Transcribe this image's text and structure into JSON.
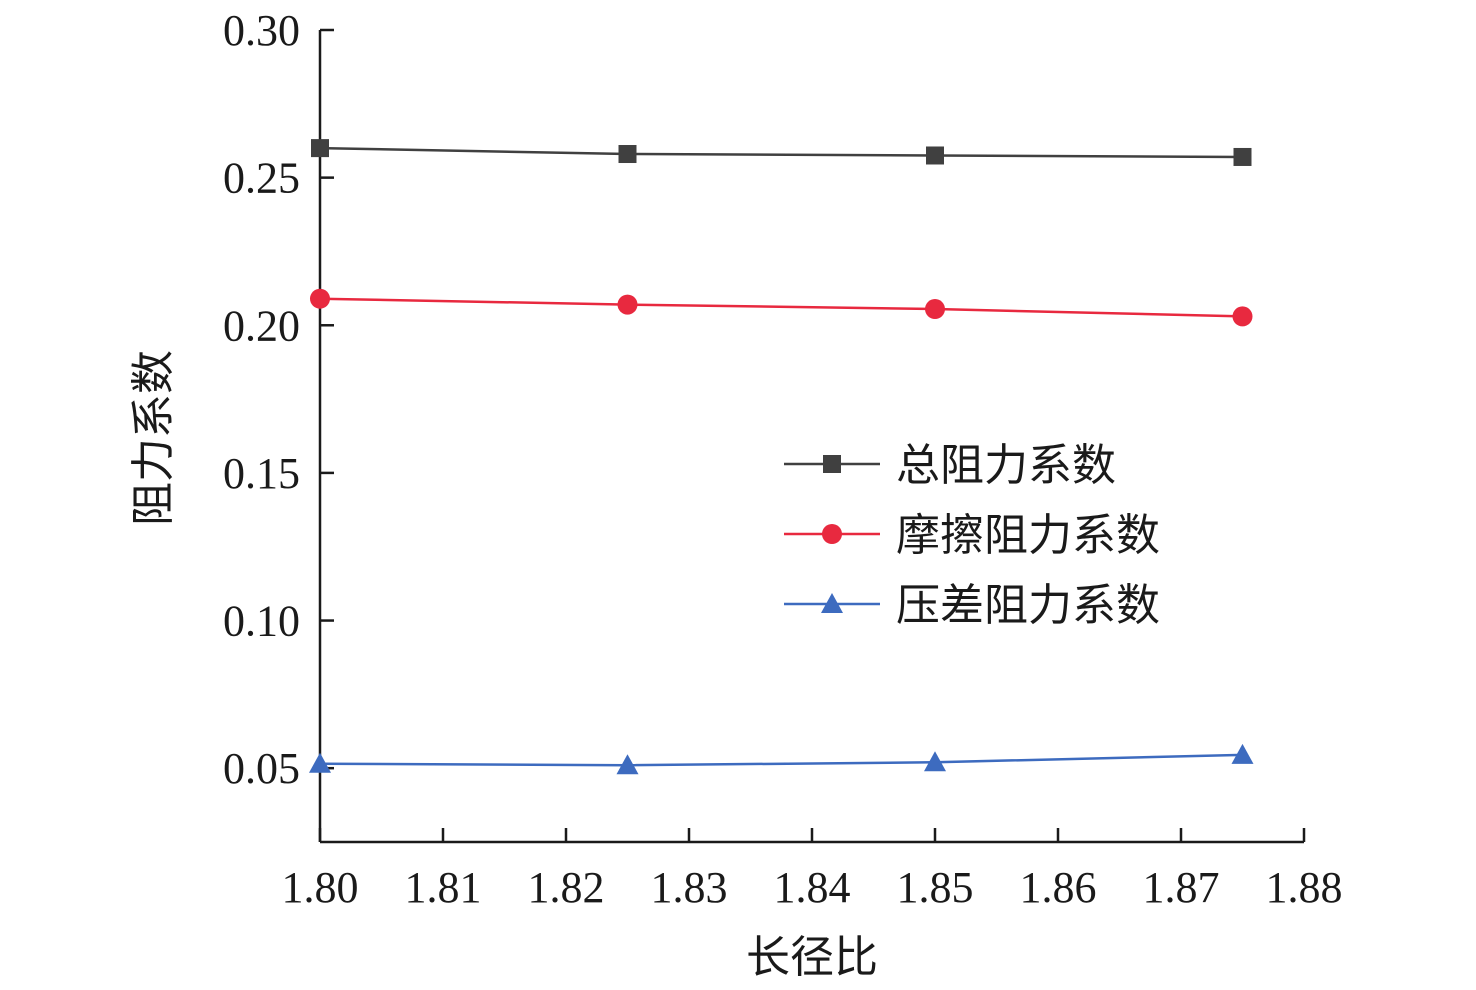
{
  "chart_data": {
    "type": "line",
    "xlabel": "长径比",
    "ylabel": "阻力系数",
    "xlim": [
      1.8,
      1.88
    ],
    "ylim": [
      0.025,
      0.3
    ],
    "x_ticks": [
      "1.80",
      "1.81",
      "1.82",
      "1.83",
      "1.84",
      "1.85",
      "1.86",
      "1.87",
      "1.88"
    ],
    "y_ticks": [
      "0.05",
      "0.10",
      "0.15",
      "0.20",
      "0.25",
      "0.30"
    ],
    "x": [
      1.8,
      1.825,
      1.85,
      1.875
    ],
    "series": [
      {
        "name": "总阻力系数",
        "color": "#404040",
        "marker": "square",
        "values": [
          0.26,
          0.258,
          0.2575,
          0.257
        ]
      },
      {
        "name": "摩擦阻力系数",
        "color": "#e8293f",
        "marker": "circle",
        "values": [
          0.209,
          0.207,
          0.2055,
          0.203
        ]
      },
      {
        "name": "压差阻力系数",
        "color": "#3d6bbf",
        "marker": "triangle",
        "values": [
          0.0515,
          0.051,
          0.052,
          0.0545
        ]
      }
    ],
    "legend_position": "center-right",
    "grid": false
  }
}
